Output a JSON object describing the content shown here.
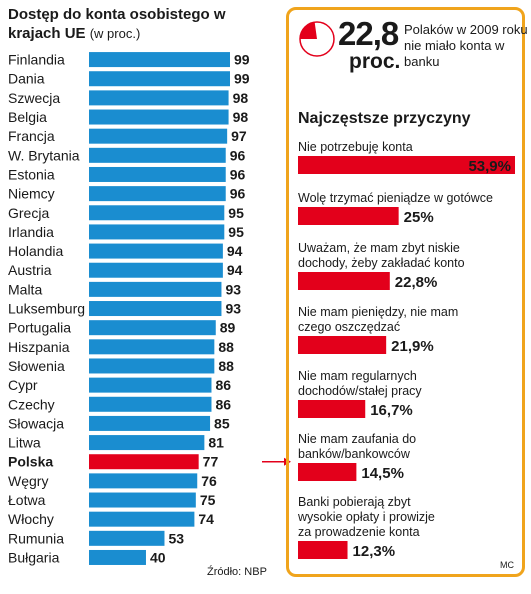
{
  "left": {
    "title": "Dostęp do konta osobistego w krajach UE",
    "unit": "(w proc.)",
    "source": "Źródło: NBP"
  },
  "right": {
    "stat_value": "22,8",
    "stat_unit": "proc.",
    "stat_text": "Polaków w 2009 roku nie miało konta w banku",
    "reasons_title": "Najczęstsze przyczyny",
    "footer_tag": "MC"
  },
  "colors": {
    "bar_blue": "#1a8dd0",
    "highlight_red": "#e3001b",
    "panel_border": "#f0a41c",
    "arrow": "#e3001b"
  },
  "chart_data": [
    {
      "type": "bar",
      "orientation": "horizontal",
      "title": "Dostęp do konta osobistego w krajach UE",
      "subtitle": "(w proc.)",
      "categories": [
        "Finlandia",
        "Dania",
        "Szwecja",
        "Belgia",
        "Francja",
        "W. Brytania",
        "Estonia",
        "Niemcy",
        "Grecja",
        "Irlandia",
        "Holandia",
        "Austria",
        "Malta",
        "Luksemburg",
        "Portugalia",
        "Hiszpania",
        "Słowenia",
        "Cypr",
        "Czechy",
        "Słowacja",
        "Litwa",
        "Polska",
        "Węgry",
        "Łotwa",
        "Włochy",
        "Rumunia",
        "Bułgaria"
      ],
      "values": [
        99,
        99,
        98,
        98,
        97,
        96,
        96,
        96,
        95,
        95,
        94,
        94,
        93,
        93,
        89,
        88,
        88,
        86,
        86,
        85,
        81,
        77,
        76,
        75,
        74,
        53,
        40
      ],
      "highlight": "Polska",
      "xlim": [
        0,
        100
      ]
    },
    {
      "type": "bar",
      "orientation": "horizontal",
      "title": "Najczęstsze przyczyny",
      "categories": [
        "Nie potrzebuję konta",
        "Wolę trzymać pieniądze w gotówce",
        "Uważam, że mam zbyt niskie dochody, żeby zakładać konto",
        "Nie mam pieniędzy, nie mam czego oszczędzać",
        "Nie mam regularnych dochodów/stałej pracy",
        "Nie mam zaufania do banków/bankowców",
        "Banki pobierają zbyt wysokie opłaty i prowizje za prowadzenie konta"
      ],
      "value_labels": [
        "53,9%",
        "25%",
        "22,8%",
        "21,9%",
        "16,7%",
        "14,5%",
        "12,3%"
      ],
      "values": [
        53.9,
        25,
        22.8,
        21.9,
        16.7,
        14.5,
        12.3
      ],
      "label_lines": [
        [
          "Nie potrzebuję konta"
        ],
        [
          "Wolę trzymać pieniądze w gotówce"
        ],
        [
          "Uważam, że mam zbyt niskie",
          "dochody, żeby zakładać konto"
        ],
        [
          "Nie mam pieniędzy, nie mam",
          "czego oszczędzać"
        ],
        [
          "Nie mam regularnych",
          "dochodów/stałej pracy"
        ],
        [
          "Nie mam zaufania do",
          "banków/bankowców"
        ],
        [
          "Banki pobierają zbyt",
          "wysokie opłaty i prowizje",
          "za prowadzenie konta"
        ]
      ]
    }
  ]
}
